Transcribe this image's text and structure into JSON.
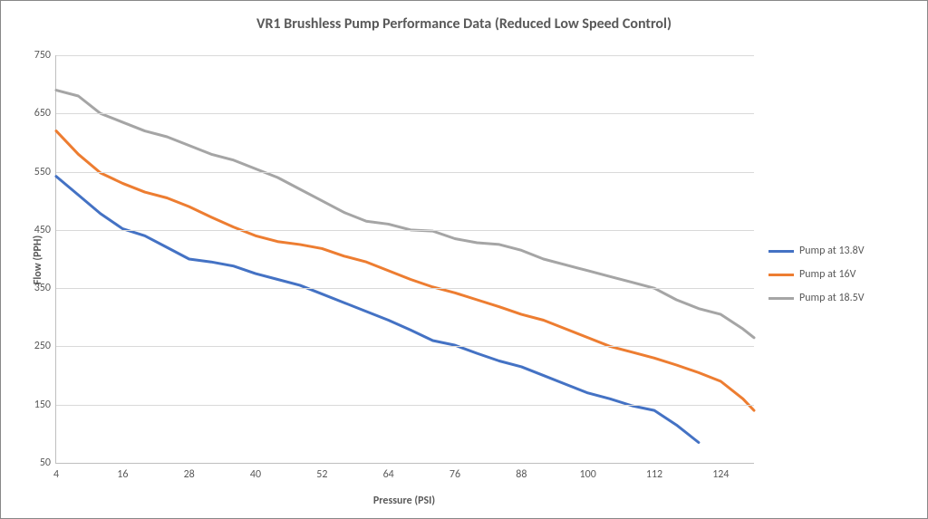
{
  "chart": {
    "type": "line",
    "title": "VR1 Brushless Pump Performance Data (Reduced Low Speed  Control)",
    "title_fontsize": 16,
    "title_color": "#595959",
    "background_color": "#ffffff",
    "border_color": "#888888",
    "grid_color": "#d9d9d9",
    "axis_line_color": "#bfbfbf",
    "tick_label_color": "#595959",
    "tick_label_fontsize": 12,
    "axis_label_fontsize": 12,
    "axis_label_fontweight": "bold",
    "x": {
      "label": "Pressure (PSI)",
      "min": 4,
      "max": 130,
      "tick_start": 4,
      "tick_step": 12,
      "tick_count": 11,
      "ticks": [
        4,
        16,
        28,
        40,
        52,
        64,
        76,
        88,
        100,
        112,
        124
      ]
    },
    "y": {
      "label": "Flow (PPH)",
      "min": 50,
      "max": 750,
      "tick_step": 100,
      "ticks": [
        50,
        150,
        250,
        350,
        450,
        550,
        650,
        750
      ]
    },
    "line_width": 3,
    "series": [
      {
        "name": "Pump at 13.8V",
        "label": "Pump at 13.8V",
        "color": "#4472c4",
        "x": [
          4,
          8,
          12,
          16,
          20,
          24,
          28,
          32,
          36,
          40,
          44,
          48,
          52,
          56,
          60,
          64,
          68,
          72,
          76,
          80,
          84,
          88,
          92,
          96,
          100,
          104,
          108,
          112,
          116,
          120
        ],
        "y": [
          542,
          510,
          478,
          452,
          440,
          420,
          400,
          395,
          388,
          375,
          365,
          355,
          340,
          325,
          310,
          295,
          278,
          260,
          252,
          238,
          225,
          215,
          200,
          185,
          170,
          160,
          148,
          140,
          115,
          85
        ]
      },
      {
        "name": "Pump at 16V",
        "label": "Pump at 16V",
        "color": "#ed7d31",
        "x": [
          4,
          8,
          12,
          16,
          20,
          24,
          28,
          32,
          36,
          40,
          44,
          48,
          52,
          56,
          60,
          64,
          68,
          72,
          76,
          80,
          84,
          88,
          92,
          96,
          100,
          104,
          108,
          112,
          116,
          120,
          124,
          128,
          130
        ],
        "y": [
          620,
          580,
          548,
          530,
          515,
          505,
          490,
          472,
          455,
          440,
          430,
          425,
          418,
          405,
          395,
          380,
          365,
          352,
          342,
          330,
          318,
          305,
          295,
          280,
          265,
          250,
          240,
          230,
          218,
          205,
          190,
          160,
          140
        ]
      },
      {
        "name": "Pump at 18.5V",
        "label": "Pump at 18.5V",
        "color": "#a5a5a5",
        "x": [
          4,
          8,
          12,
          16,
          20,
          24,
          28,
          32,
          36,
          40,
          44,
          48,
          52,
          56,
          60,
          64,
          68,
          72,
          76,
          80,
          84,
          88,
          92,
          96,
          100,
          104,
          108,
          112,
          116,
          120,
          124,
          128,
          130
        ],
        "y": [
          690,
          680,
          650,
          635,
          620,
          610,
          595,
          580,
          570,
          555,
          540,
          520,
          500,
          480,
          465,
          460,
          450,
          448,
          435,
          428,
          425,
          415,
          400,
          390,
          380,
          370,
          360,
          350,
          330,
          315,
          305,
          280,
          265
        ]
      }
    ],
    "legend": {
      "position": "right",
      "item_fontsize": 12,
      "text_color": "#595959",
      "swatch_width": 28,
      "swatch_height": 3
    }
  }
}
